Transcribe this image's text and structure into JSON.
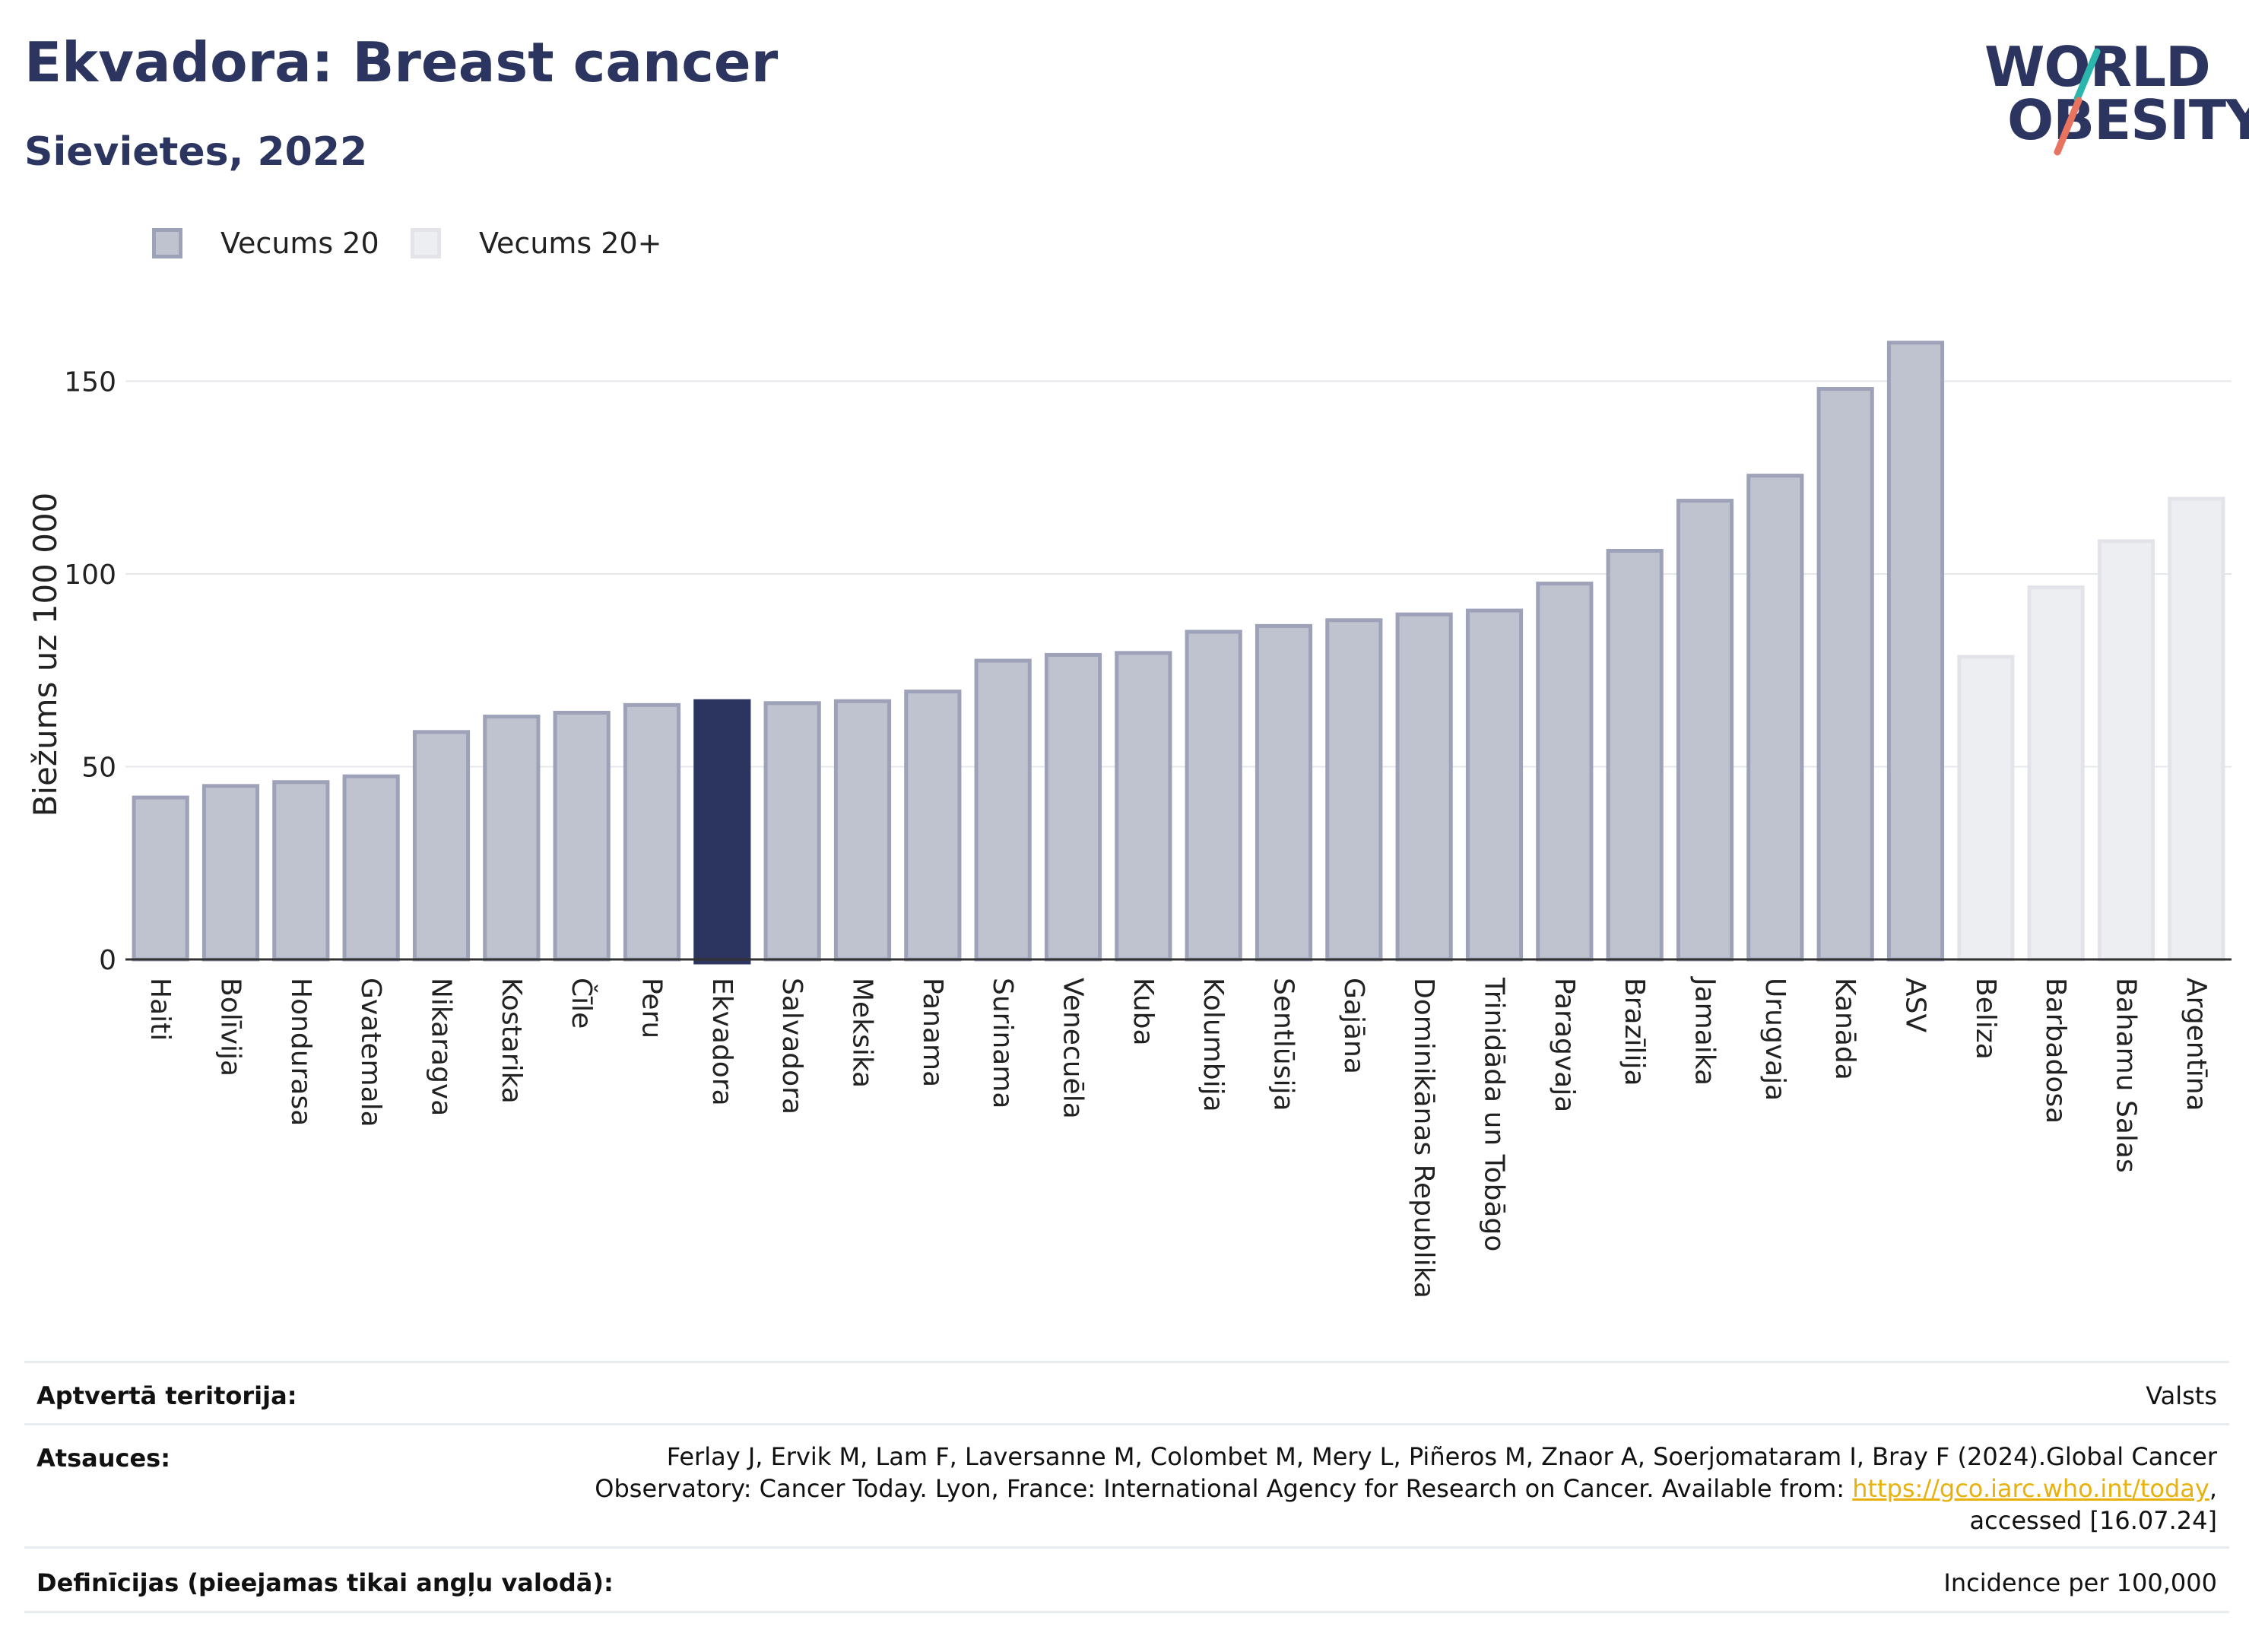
{
  "header": {
    "title": "Ekvadora: Breast cancer",
    "subtitle": "Sievietes, 2022"
  },
  "logo": {
    "line1": "WORLD",
    "line2": "OBESITY",
    "text": "WORLD OBESITY"
  },
  "legend": [
    {
      "label": "Vecums 20",
      "fill": "#bfc3d0",
      "stroke": "#9da2b8"
    },
    {
      "label": "Vecums 20+",
      "fill": "#edeef2",
      "stroke": "#e3e4ea"
    }
  ],
  "colors": {
    "highlight": "#2b355f",
    "bar_primary_fill": "#bfc3d0",
    "bar_primary_stroke": "#9da2b8",
    "bar_secondary_fill": "#edeef2",
    "bar_secondary_stroke": "#e3e4ea",
    "logo_teal": "#2bb6ad",
    "logo_coral": "#e8735e",
    "link": "#e8b10e"
  },
  "chart_data": {
    "type": "bar",
    "ylabel": "Biežums uz 100 000",
    "xlabel": "",
    "ylim": [
      0,
      170
    ],
    "yticks": [
      0,
      50,
      100,
      150
    ],
    "grid": true,
    "legend_position": "top-left",
    "highlight_category": "Ekvadora",
    "categories": [
      "Haiti",
      "Bolīvija",
      "Hondurasa",
      "Gvatemala",
      "Nikaragva",
      "Kostarika",
      "Čīle",
      "Peru",
      "Ekvadora",
      "Salvadora",
      "Meksika",
      "Panama",
      "Surinama",
      "Venecuēla",
      "Kuba",
      "Kolumbija",
      "Sentlūsija",
      "Gajāna",
      "Dominikānas Republika",
      "Trinidāda un Tobāgo",
      "Paragvaja",
      "Brazīlija",
      "Jamaika",
      "Urugvaja",
      "Kanāda",
      "ASV",
      "Beliza",
      "Barbadosa",
      "Bahamu Salas",
      "Argentīna"
    ],
    "values": [
      42,
      45,
      46,
      47.5,
      59,
      63,
      64,
      66,
      67,
      66.5,
      67,
      69.5,
      77.5,
      79,
      79.5,
      85,
      86.5,
      88,
      89.5,
      90.5,
      97.5,
      106,
      119,
      125.5,
      148,
      160,
      78.5,
      96.5,
      108.5,
      119.5
    ],
    "groups": [
      "Vecums 20",
      "Vecums 20",
      "Vecums 20",
      "Vecums 20",
      "Vecums 20",
      "Vecums 20",
      "Vecums 20",
      "Vecums 20",
      "Vecums 20",
      "Vecums 20",
      "Vecums 20",
      "Vecums 20",
      "Vecums 20",
      "Vecums 20",
      "Vecums 20",
      "Vecums 20",
      "Vecums 20",
      "Vecums 20",
      "Vecums 20",
      "Vecums 20",
      "Vecums 20",
      "Vecums 20",
      "Vecums 20",
      "Vecums 20",
      "Vecums 20",
      "Vecums 20",
      "Vecums 20+",
      "Vecums 20+",
      "Vecums 20+",
      "Vecums 20+"
    ]
  },
  "footer": {
    "territory_label": "Aptvertā teritorija:",
    "territory_value": "Valsts",
    "references_label": "Atsauces:",
    "references_line1": "Ferlay J, Ervik M, Lam F, Laversanne M, Colombet M, Mery L, Piñeros M, Znaor A, Soerjomataram I, Bray F (2024).Global Cancer",
    "references_line2": "Observatory: Cancer Today. Lyon, France: International Agency for Research on Cancer. Available from:",
    "references_link": "https://gco.iarc.who.int/today",
    "references_after_link": ",",
    "references_line3": "accessed [16.07.24]",
    "definitions_label": "Definīcijas (pieejamas tikai angļu valodā):",
    "definitions_value": "Incidence per 100,000"
  }
}
